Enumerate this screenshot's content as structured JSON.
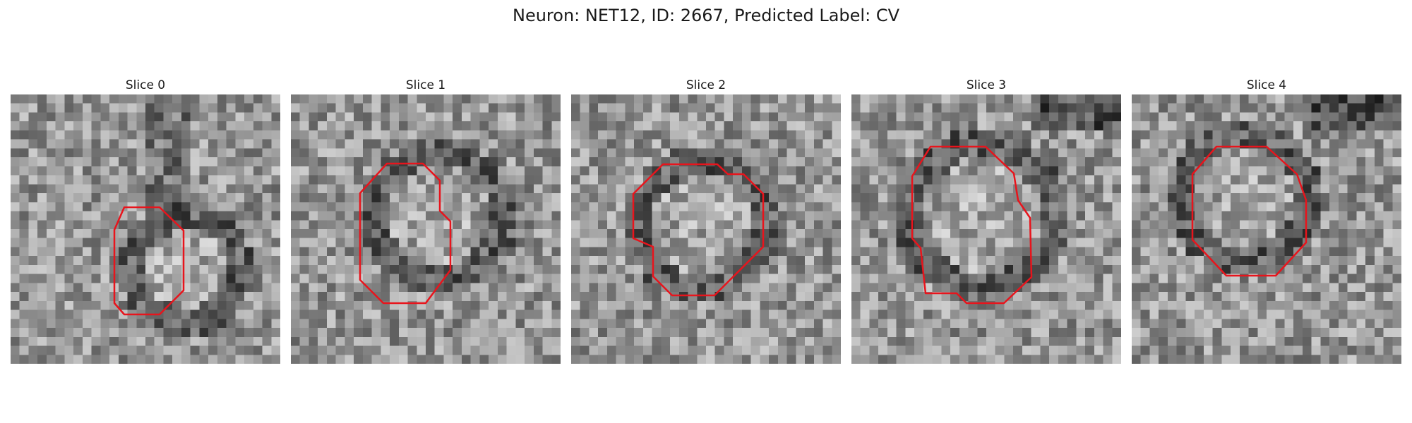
{
  "figure": {
    "title": "Neuron: NET12, ID: 2667, Predicted Label: CV"
  },
  "colors": {
    "contour": "#e8141c",
    "background": "#ffffff"
  },
  "slices": [
    {
      "title": "Slice 0",
      "seed": 11
    },
    {
      "title": "Slice 1",
      "seed": 23
    },
    {
      "title": "Slice 2",
      "seed": 37
    },
    {
      "title": "Slice 3",
      "seed": 51
    },
    {
      "title": "Slice 4",
      "seed": 67
    }
  ]
}
